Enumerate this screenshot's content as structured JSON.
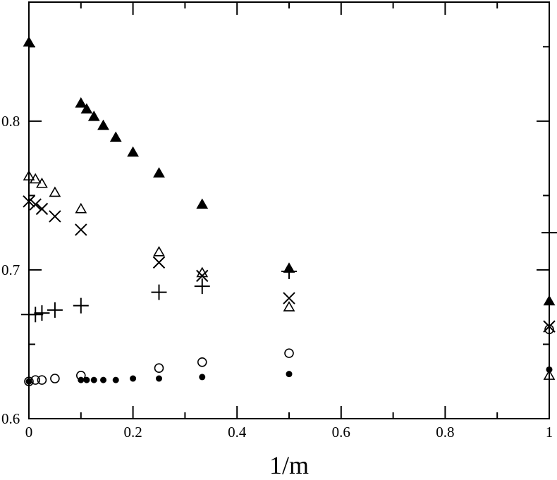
{
  "chart_data": {
    "type": "scatter",
    "title": "",
    "xlabel": "1/m",
    "ylabel": "",
    "xlim": [
      0,
      1
    ],
    "ylim": [
      0.6,
      0.88
    ],
    "x_ticks": [
      0,
      0.2,
      0.4,
      0.6,
      0.8,
      1
    ],
    "x_tick_labels": [
      "0",
      "0.2",
      "0.4",
      "0.6",
      "0.8",
      "1"
    ],
    "y_ticks": [
      0.6,
      0.7,
      0.8
    ],
    "y_tick_labels": [
      "0.6",
      "0.7",
      "0.8"
    ],
    "grid": false,
    "legend": "none",
    "series": [
      {
        "marker": "filled-triangle",
        "points": [
          [
            0,
            0.853
          ],
          [
            0.1,
            0.812
          ],
          [
            0.111,
            0.808
          ],
          [
            0.125,
            0.803
          ],
          [
            0.143,
            0.797
          ],
          [
            0.167,
            0.789
          ],
          [
            0.2,
            0.779
          ],
          [
            0.25,
            0.765
          ],
          [
            0.333,
            0.744
          ],
          [
            0.5,
            0.701
          ],
          [
            1,
            0.679
          ]
        ]
      },
      {
        "marker": "open-triangle",
        "points": [
          [
            0,
            0.763
          ],
          [
            0.0125,
            0.761
          ],
          [
            0.025,
            0.758
          ],
          [
            0.05,
            0.752
          ],
          [
            0.1,
            0.741
          ],
          [
            0.25,
            0.712
          ],
          [
            0.333,
            0.698
          ],
          [
            0.5,
            0.675
          ],
          [
            1,
            0.629
          ]
        ]
      },
      {
        "marker": "cross",
        "points": [
          [
            0,
            0.746
          ],
          [
            0.0125,
            0.744
          ],
          [
            0.025,
            0.741
          ],
          [
            0.05,
            0.736
          ],
          [
            0.1,
            0.727
          ],
          [
            0.25,
            0.705
          ],
          [
            0.333,
            0.696
          ],
          [
            0.5,
            0.681
          ],
          [
            1,
            0.662
          ]
        ]
      },
      {
        "marker": "plus",
        "points": [
          [
            0,
            0.67
          ],
          [
            0.0125,
            0.67
          ],
          [
            0.025,
            0.671
          ],
          [
            0.05,
            0.673
          ],
          [
            0.1,
            0.676
          ],
          [
            0.25,
            0.685
          ],
          [
            0.333,
            0.689
          ],
          [
            0.5,
            0.699
          ],
          [
            1,
            0.725
          ]
        ]
      },
      {
        "marker": "open-circle",
        "points": [
          [
            0,
            0.625
          ],
          [
            0.0125,
            0.626
          ],
          [
            0.025,
            0.626
          ],
          [
            0.05,
            0.627
          ],
          [
            0.1,
            0.629
          ],
          [
            0.25,
            0.634
          ],
          [
            0.333,
            0.638
          ],
          [
            0.5,
            0.644
          ],
          [
            1,
            0.66
          ]
        ]
      },
      {
        "marker": "filled-circle",
        "points": [
          [
            0,
            0.625
          ],
          [
            0.1,
            0.626
          ],
          [
            0.111,
            0.626
          ],
          [
            0.125,
            0.626
          ],
          [
            0.143,
            0.626
          ],
          [
            0.167,
            0.626
          ],
          [
            0.2,
            0.627
          ],
          [
            0.25,
            0.627
          ],
          [
            0.333,
            0.628
          ],
          [
            0.5,
            0.63
          ],
          [
            1,
            0.633
          ]
        ]
      }
    ]
  }
}
